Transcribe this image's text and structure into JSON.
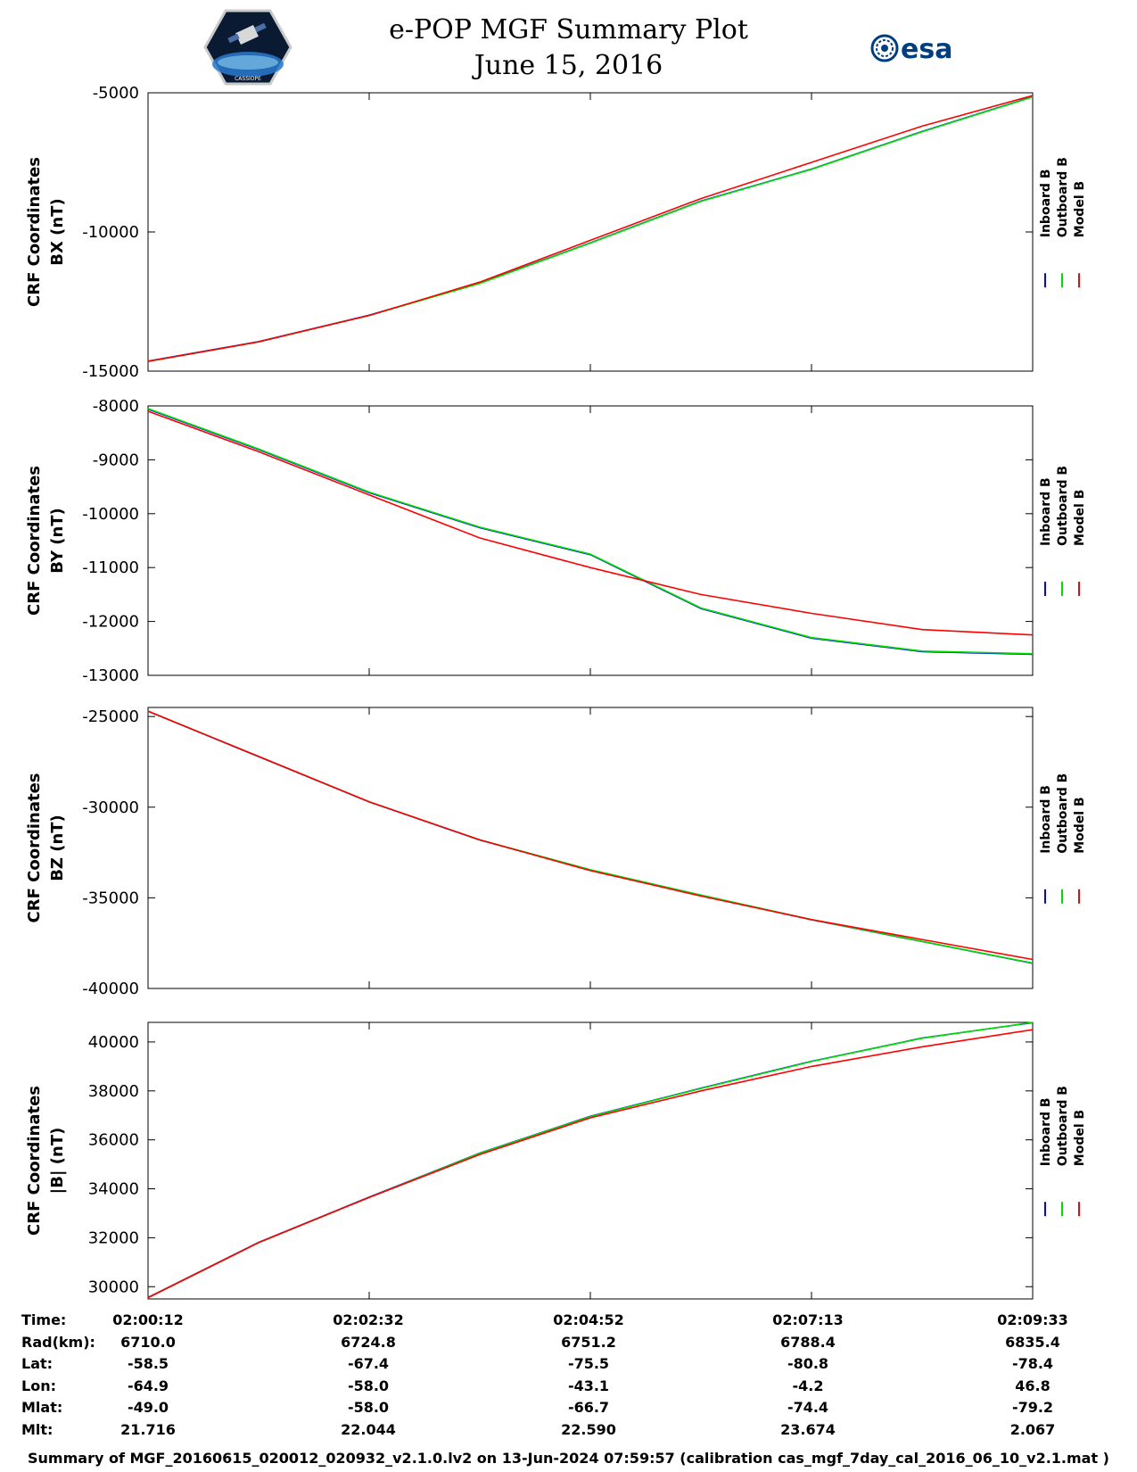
{
  "header": {
    "title": "e-POP MGF Summary Plot",
    "subtitle": "June 15, 2016",
    "logo_left_text": "CASSIOPE",
    "logo_right_text": "esa"
  },
  "legend": {
    "entries": [
      {
        "name": "Inboard B",
        "color": "#0000ff"
      },
      {
        "name": "Outboard B",
        "color": "#00dd00"
      },
      {
        "name": "Model B",
        "color": "#ff0000"
      }
    ]
  },
  "chart_data": [
    {
      "type": "line",
      "ylabel_line1": "CRF Coordinates",
      "ylabel_line2": "BX (nT)",
      "ylim": [
        -15000,
        -5000
      ],
      "yticks": [
        -15000,
        -10000,
        -5000
      ],
      "x": [
        0,
        0.125,
        0.25,
        0.375,
        0.5,
        0.625,
        0.75,
        0.875,
        1.0
      ],
      "series": [
        {
          "name": "Model B",
          "color": "#ff0000",
          "values": [
            -14650,
            -13950,
            -13000,
            -11800,
            -10300,
            -8800,
            -7500,
            -6200,
            -5100
          ]
        },
        {
          "name": "Outboard B",
          "color": "#00dd00",
          "values": [
            -14650,
            -13950,
            -13000,
            -11850,
            -10400,
            -8900,
            -7750,
            -6400,
            -5150
          ]
        },
        {
          "name": "Inboard B",
          "color": "#0000ff",
          "values": [
            -14640,
            -13940,
            -12990,
            -11840,
            -10390,
            -8890,
            -7740,
            -6390,
            -5140
          ]
        }
      ]
    },
    {
      "type": "line",
      "ylabel_line1": "CRF Coordinates",
      "ylabel_line2": "BY (nT)",
      "ylim": [
        -13000,
        -8000
      ],
      "yticks": [
        -13000,
        -12000,
        -11000,
        -10000,
        -9000,
        -8000
      ],
      "x": [
        0,
        0.125,
        0.25,
        0.375,
        0.5,
        0.625,
        0.75,
        0.875,
        1.0
      ],
      "series": [
        {
          "name": "Model B",
          "color": "#ff0000",
          "values": [
            -8100,
            -8850,
            -9650,
            -10450,
            -11000,
            -11500,
            -11850,
            -12150,
            -12250
          ]
        },
        {
          "name": "Outboard B",
          "color": "#00dd00",
          "values": [
            -8050,
            -8800,
            -9600,
            -10250,
            -10750,
            -11750,
            -12300,
            -12550,
            -12600
          ]
        },
        {
          "name": "Inboard B",
          "color": "#0000ff",
          "values": [
            -8060,
            -8810,
            -9610,
            -10260,
            -10760,
            -11760,
            -12310,
            -12560,
            -12610
          ]
        }
      ]
    },
    {
      "type": "line",
      "ylabel_line1": "CRF Coordinates",
      "ylabel_line2": "BZ (nT)",
      "ylim": [
        -40000,
        -24500
      ],
      "yticks": [
        -40000,
        -35000,
        -30000,
        -25000
      ],
      "x": [
        0,
        0.125,
        0.25,
        0.375,
        0.5,
        0.625,
        0.75,
        0.875,
        1.0
      ],
      "series": [
        {
          "name": "Model B",
          "color": "#ff0000",
          "values": [
            -24700,
            -27200,
            -29700,
            -31800,
            -33500,
            -34900,
            -36200,
            -37300,
            -38400
          ]
        },
        {
          "name": "Outboard B",
          "color": "#00dd00",
          "values": [
            -24700,
            -27200,
            -29700,
            -31800,
            -33450,
            -34850,
            -36200,
            -37400,
            -38600
          ]
        },
        {
          "name": "Inboard B",
          "color": "#0000ff",
          "values": [
            -24710,
            -27210,
            -29710,
            -31810,
            -33460,
            -34860,
            -36210,
            -37410,
            -38610
          ]
        }
      ]
    },
    {
      "type": "line",
      "ylabel_line1": "CRF Coordinates",
      "ylabel_line2": "|B| (nT)",
      "ylim": [
        29500,
        40800
      ],
      "yticks": [
        30000,
        32000,
        34000,
        36000,
        38000,
        40000
      ],
      "x": [
        0,
        0.125,
        0.25,
        0.375,
        0.5,
        0.625,
        0.75,
        0.875,
        1.0
      ],
      "series": [
        {
          "name": "Model B",
          "color": "#ff0000",
          "values": [
            29550,
            31800,
            33650,
            35400,
            36900,
            38000,
            39000,
            39800,
            40500
          ]
        },
        {
          "name": "Outboard B",
          "color": "#00dd00",
          "values": [
            29550,
            31800,
            33650,
            35450,
            36950,
            38100,
            39200,
            40150,
            40800
          ]
        },
        {
          "name": "Inboard B",
          "color": "#0000ff",
          "values": [
            29560,
            31810,
            33660,
            35460,
            36960,
            38110,
            39210,
            40160,
            40790
          ]
        }
      ]
    }
  ],
  "ephemeris": {
    "labels": [
      "Time:",
      "Rad(km):",
      "Lat:",
      "Lon:",
      "Mlat:",
      "Mlt:"
    ],
    "columns": [
      [
        "02:00:12",
        "6710.0",
        "-58.5",
        "-64.9",
        "-49.0",
        "21.716"
      ],
      [
        "02:02:32",
        "6724.8",
        "-67.4",
        "-58.0",
        "-58.0",
        "22.044"
      ],
      [
        "02:04:52",
        "6751.2",
        "-75.5",
        "-43.1",
        "-66.7",
        "22.590"
      ],
      [
        "02:07:13",
        "6788.4",
        "-80.8",
        "-4.2",
        "-74.4",
        "23.674"
      ],
      [
        "02:09:33",
        "6835.4",
        "-78.4",
        "46.8",
        "-79.2",
        "2.067"
      ]
    ]
  },
  "footer": "Summary of MGF_20160615_020012_020932_v2.1.0.lv2 on 13-Jun-2024 07:59:57 (calibration cas_mgf_7day_cal_2016_06_10_v2.1.mat )"
}
